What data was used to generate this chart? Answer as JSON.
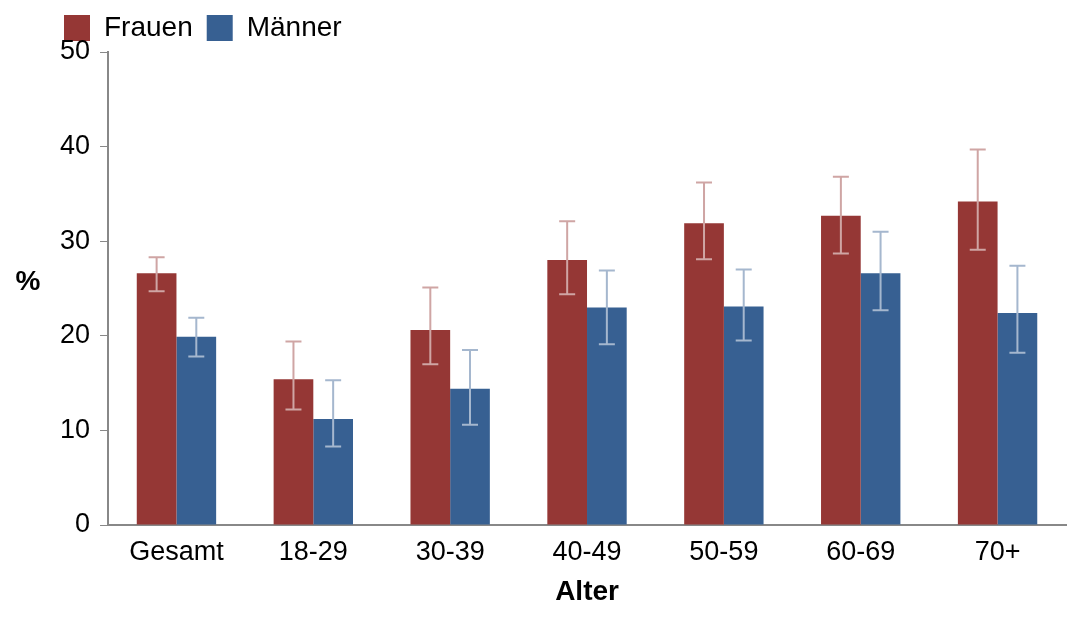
{
  "chart_data": {
    "type": "bar",
    "xlabel": "Alter",
    "ylabel": "%",
    "categories": [
      "Gesamt",
      "18-29",
      "30-39",
      "40-49",
      "50-59",
      "60-69",
      "70+"
    ],
    "series": [
      {
        "name": "Frauen",
        "color": "#953735",
        "values": [
          26.6,
          15.4,
          20.6,
          28.0,
          31.9,
          32.7,
          34.2
        ],
        "errors": [
          [
            24.7,
            28.3
          ],
          [
            12.2,
            19.4
          ],
          [
            17.0,
            25.1
          ],
          [
            24.4,
            32.1
          ],
          [
            28.1,
            36.2
          ],
          [
            28.7,
            36.8
          ],
          [
            29.1,
            39.7
          ]
        ]
      },
      {
        "name": "Männer",
        "color": "#376092",
        "values": [
          19.9,
          11.2,
          14.4,
          23.0,
          23.1,
          26.6,
          22.4
        ],
        "errors": [
          [
            17.8,
            21.9
          ],
          [
            8.3,
            15.3
          ],
          [
            10.6,
            18.5
          ],
          [
            19.1,
            26.9
          ],
          [
            19.5,
            27.0
          ],
          [
            22.7,
            31.0
          ],
          [
            18.2,
            27.4
          ]
        ]
      }
    ],
    "ylim": [
      0,
      50
    ],
    "yticks": [
      0,
      10,
      20,
      30,
      40,
      50
    ],
    "grid": false,
    "legend": "top left"
  }
}
